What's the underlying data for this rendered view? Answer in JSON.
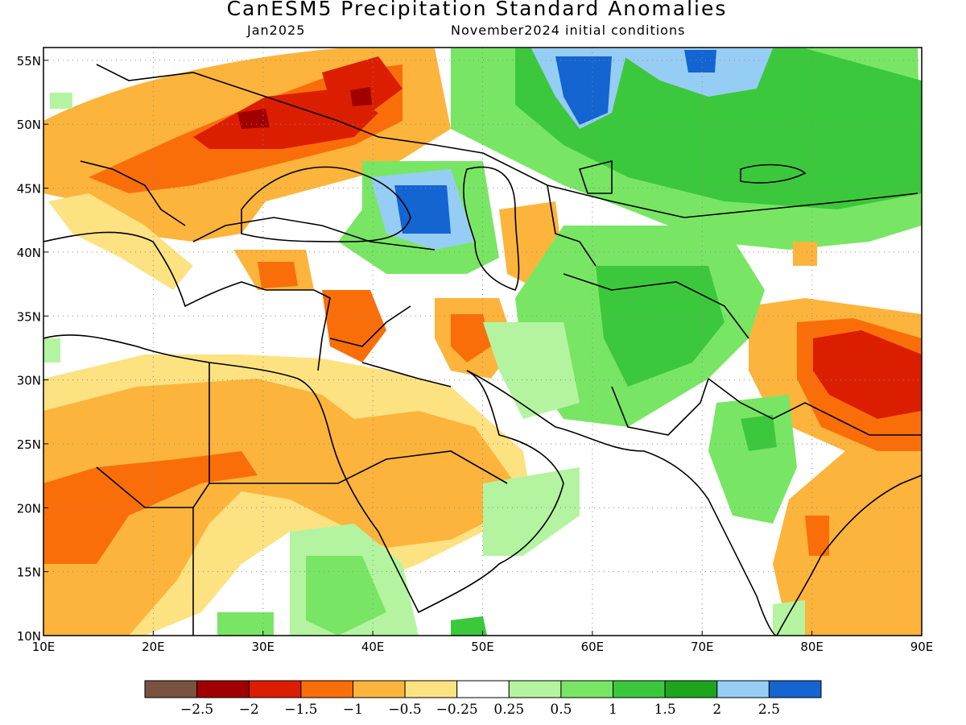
{
  "header": {
    "title": "CanESM5 Precipitation Standard Anomalies",
    "valid_month": "Jan2025",
    "initial_conditions": "November2024 initial conditions"
  },
  "map": {
    "lon_range": [
      10,
      90
    ],
    "lat_range": [
      10,
      56
    ],
    "lon_ticks": [
      {
        "value": 10,
        "label": "10E"
      },
      {
        "value": 20,
        "label": "20E"
      },
      {
        "value": 30,
        "label": "30E"
      },
      {
        "value": 40,
        "label": "40E"
      },
      {
        "value": 50,
        "label": "50E"
      },
      {
        "value": 60,
        "label": "60E"
      },
      {
        "value": 70,
        "label": "70E"
      },
      {
        "value": 80,
        "label": "80E"
      },
      {
        "value": 90,
        "label": "90E"
      }
    ],
    "lat_ticks": [
      {
        "value": 10,
        "label": "10N"
      },
      {
        "value": 15,
        "label": "15N"
      },
      {
        "value": 20,
        "label": "20N"
      },
      {
        "value": 25,
        "label": "25N"
      },
      {
        "value": 30,
        "label": "30N"
      },
      {
        "value": 35,
        "label": "35N"
      },
      {
        "value": 40,
        "label": "40N"
      },
      {
        "value": 45,
        "label": "45N"
      },
      {
        "value": 50,
        "label": "50N"
      },
      {
        "value": 55,
        "label": "55N"
      }
    ],
    "grid": "dotted"
  },
  "colorbar": {
    "bins": [
      {
        "color": "#7a5240"
      },
      {
        "color": "#a00000"
      },
      {
        "color": "#dc1e00"
      },
      {
        "color": "#fa6e0a"
      },
      {
        "color": "#fdb43c"
      },
      {
        "color": "#fde282"
      },
      {
        "color": "#ffffff"
      },
      {
        "color": "#b4f4a0"
      },
      {
        "color": "#78e664"
      },
      {
        "color": "#3cc83c"
      },
      {
        "color": "#1ea51e"
      },
      {
        "color": "#96cdf5"
      },
      {
        "color": "#1464d2"
      }
    ],
    "labels": [
      "−2.5",
      "−2",
      "−1.5",
      "−1",
      "−0.5",
      "−0.25",
      "0.25",
      "0.5",
      "1",
      "1.5",
      "2",
      "2.5"
    ]
  }
}
